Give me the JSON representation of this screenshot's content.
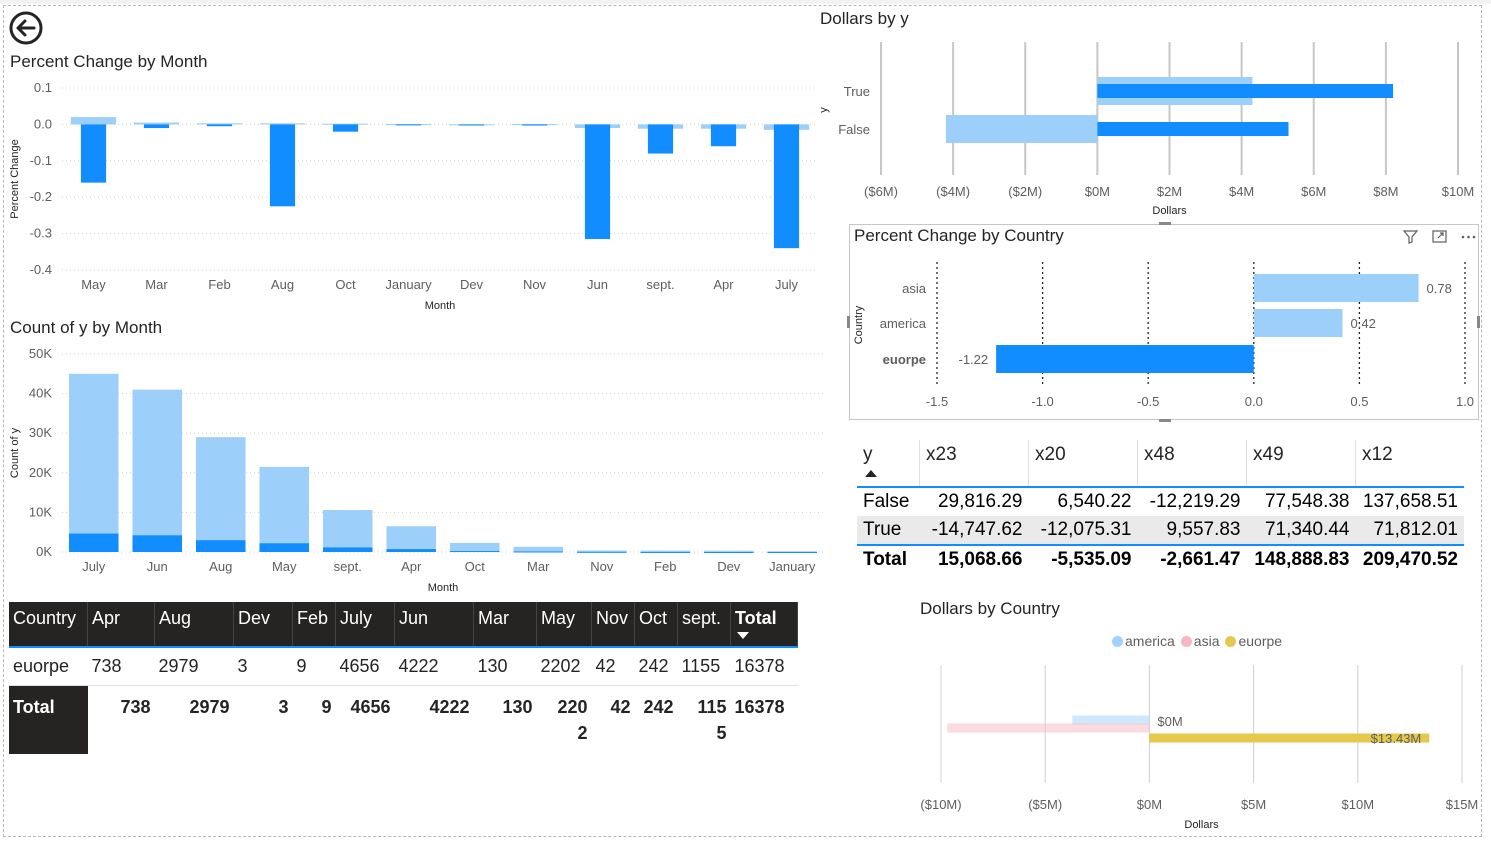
{
  "back_button": {
    "icon": "back-arrow-icon",
    "label": ""
  },
  "colors": {
    "dark_blue": "#118dff",
    "light_blue": "#9dcffb",
    "america": "#a0d1ff",
    "asia": "#f7b7c0",
    "euorpe": "#e6c84d"
  },
  "pct_by_month": {
    "title": "Percent Change by Month",
    "chart_data": {
      "type": "bar",
      "title": "Percent Change by Month",
      "xlabel": "Month",
      "ylabel": "Percent Change",
      "ylim": [
        -0.4,
        0.1
      ],
      "yticks": [
        "0.1",
        "0.0",
        "-0.1",
        "-0.2",
        "-0.3",
        "-0.4"
      ],
      "categories": [
        "May",
        "Mar",
        "Feb",
        "Aug",
        "Oct",
        "January",
        "Dev",
        "Nov",
        "Jun",
        "sept.",
        "Apr",
        "July"
      ],
      "series": [
        {
          "values": [
            0.02,
            0.005,
            0.003,
            0.003,
            0.002,
            0.001,
            0.0,
            0.001,
            -0.01,
            -0.012,
            -0.012,
            -0.015
          ]
        },
        {
          "values": [
            -0.16,
            -0.01,
            -0.005,
            -0.225,
            -0.02,
            -0.002,
            -0.003,
            -0.003,
            -0.315,
            -0.08,
            -0.06,
            -0.34
          ]
        }
      ]
    }
  },
  "count_by_month": {
    "title": "Count of y by Month",
    "chart_data": {
      "type": "bar",
      "title": "Count of y by Month",
      "xlabel": "Month",
      "ylabel": "Count of y",
      "ylim": [
        0,
        50000
      ],
      "yticks": [
        "50K",
        "40K",
        "30K",
        "20K",
        "10K",
        "0K"
      ],
      "categories": [
        "July",
        "Jun",
        "Aug",
        "May",
        "sept.",
        "Apr",
        "Oct",
        "Mar",
        "Nov",
        "Feb",
        "Dev",
        "January"
      ],
      "series": [
        {
          "values": [
            45000,
            41000,
            29000,
            21500,
            10600,
            6500,
            2300,
            1300,
            380,
            360,
            330,
            200
          ]
        },
        {
          "values": [
            4656,
            4222,
            2979,
            2202,
            1155,
            738,
            242,
            130,
            42,
            9,
            3,
            0
          ]
        }
      ]
    }
  },
  "dollars_by_y": {
    "title": "Dollars by y",
    "chart_data": {
      "type": "bar",
      "title": "Dollars by y",
      "xlabel": "Dollars",
      "ylabel": "y",
      "xlim": [
        -6000000,
        10000000
      ],
      "xticks": [
        "($6M)",
        "($4M)",
        "($2M)",
        "$0M",
        "$2M",
        "$4M",
        "$6M",
        "$8M",
        "$10M"
      ],
      "categories": [
        "True",
        "False"
      ],
      "series": [
        {
          "values": [
            4300000,
            -4200000
          ]
        },
        {
          "values": [
            8200000,
            5300000
          ]
        }
      ]
    }
  },
  "pct_by_country": {
    "title": "Percent Change by Country",
    "chart_data": {
      "type": "bar",
      "title": "Percent Change by Country",
      "ylabel": "Country",
      "xlim": [
        -1.5,
        1.0
      ],
      "xticks": [
        "-1.5",
        "-1.0",
        "-0.5",
        "0.0",
        "0.5",
        "1.0"
      ],
      "categories": [
        "asia",
        "america",
        "euorpe"
      ],
      "values": [
        0.78,
        0.42,
        -1.22
      ],
      "data_labels": [
        "0.78",
        "0.42",
        "-1.22"
      ]
    }
  },
  "y_table": {
    "columns": [
      "y",
      "x23",
      "x20",
      "x48",
      "x49",
      "x12"
    ],
    "rows": [
      [
        "False",
        "29,816.29",
        "6,540.22",
        "-12,219.29",
        "77,548.38",
        "137,658.51"
      ],
      [
        "True",
        "-14,747.62",
        "-12,075.31",
        "9,557.83",
        "71,340.44",
        "71,812.01"
      ],
      [
        "Total",
        "15,068.66",
        "-5,535.09",
        "-2,661.47",
        "148,888.83",
        "209,470.52"
      ]
    ]
  },
  "dollars_by_country": {
    "title": "Dollars by Country",
    "legend": [
      "america",
      "asia",
      "euorpe"
    ],
    "chart_data": {
      "type": "bar",
      "title": "Dollars by Country",
      "xlabel": "Dollars",
      "xlim": [
        -10000000,
        15000000
      ],
      "xticks": [
        "($10M)",
        "($5M)",
        "$0M",
        "$5M",
        "$10M",
        "$15M"
      ],
      "series": [
        {
          "name": "america",
          "values": [
            -3700000
          ]
        },
        {
          "name": "asia",
          "values": [
            -9700000
          ]
        },
        {
          "name": "euorpe",
          "values": [
            13430000
          ]
        }
      ],
      "data_labels": [
        "$0M",
        "$13.43M"
      ]
    }
  },
  "country_matrix": {
    "columns": [
      "Country",
      "Apr",
      "Aug",
      "Dev",
      "Feb",
      "July",
      "Jun",
      "Mar",
      "May",
      "Nov",
      "Oct",
      "sept.",
      "Total"
    ],
    "rows": [
      [
        "euorpe",
        "738",
        "2979",
        "3",
        "9",
        "4656",
        "4222",
        "130",
        "2202",
        "42",
        "242",
        "1155",
        "16378"
      ],
      [
        "Total",
        "738",
        "2979",
        "3",
        "9",
        "4656",
        "4222",
        "130",
        "220\n2",
        "42",
        "242",
        "115\n5",
        "16378"
      ]
    ]
  }
}
